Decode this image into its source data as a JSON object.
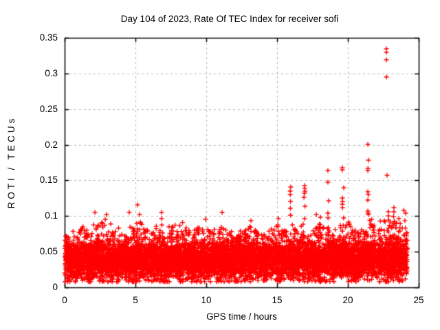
{
  "chart_data": {
    "type": "scatter",
    "title": "Day 104 of 2023, Rate Of TEC Index for receiver sofi",
    "xlabel": "GPS time / hours",
    "ylabel": "ROTI / TECUs",
    "xlim": [
      0,
      25
    ],
    "ylim": [
      0,
      0.35
    ],
    "xticks": {
      "values": [
        0,
        5,
        10,
        15,
        20,
        25
      ],
      "labels": [
        "0",
        "5",
        "10",
        "15",
        "20",
        "25"
      ]
    },
    "yticks": {
      "values": [
        0,
        0.05,
        0.1,
        0.15,
        0.2,
        0.25,
        0.3,
        0.35
      ],
      "labels": [
        "0",
        "0.05",
        "0.1",
        "0.15",
        "0.2",
        "0.25",
        "0.3",
        "0.35"
      ]
    },
    "grid": {
      "show": true,
      "color": "#b3b3b3",
      "dash": [
        3,
        4
      ]
    },
    "axes_color": "#000000",
    "background": "#ffffff",
    "legend": "none",
    "series": [
      {
        "name": "ROTI receiver sofi",
        "marker": "plus",
        "color": "#ff0000",
        "marker_size": 7,
        "outliers": [
          [
            22.72,
            0.3346
          ],
          [
            22.72,
            0.3298
          ],
          [
            22.72,
            0.3192
          ],
          [
            22.73,
            0.2951
          ],
          [
            21.41,
            0.2006
          ],
          [
            21.45,
            0.1784
          ],
          [
            21.42,
            0.1668
          ],
          [
            21.41,
            0.1639
          ],
          [
            19.61,
            0.1678
          ],
          [
            19.61,
            0.1649
          ],
          [
            19.71,
            0.1398
          ],
          [
            19.61,
            0.1254
          ],
          [
            19.63,
            0.1205
          ],
          [
            19.61,
            0.1167
          ],
          [
            19.62,
            0.1119
          ],
          [
            18.59,
            0.1639
          ],
          [
            18.59,
            0.1475
          ],
          [
            18.64,
            0.1215
          ],
          [
            18.59,
            0.1041
          ],
          [
            18.6,
            0.0974
          ],
          [
            22.77,
            0.1572
          ],
          [
            22.86,
            0.1061
          ],
          [
            22.86,
            0.1003
          ],
          [
            22.88,
            0.0945
          ],
          [
            21.41,
            0.134
          ],
          [
            21.44,
            0.1302
          ],
          [
            21.41,
            0.1225
          ],
          [
            21.41,
            0.107
          ],
          [
            21.43,
            0.1041
          ],
          [
            21.45,
            0.1022
          ],
          [
            16.94,
            0.1427
          ],
          [
            16.95,
            0.1389
          ],
          [
            16.97,
            0.135
          ],
          [
            16.94,
            0.1321
          ],
          [
            16.9,
            0.1263
          ],
          [
            16.97,
            0.1138
          ],
          [
            16.94,
            0.0964
          ],
          [
            15.97,
            0.1408
          ],
          [
            15.93,
            0.135
          ],
          [
            15.93,
            0.1302
          ],
          [
            15.95,
            0.1205
          ],
          [
            15.94,
            0.1109
          ],
          [
            15.95,
            0.1013
          ],
          [
            23.25,
            0.1119
          ],
          [
            23.25,
            0.1061
          ],
          [
            23.22,
            0.0993
          ],
          [
            23.28,
            0.0926
          ],
          [
            2.14,
            0.1051
          ],
          [
            2.96,
            0.1022
          ],
          [
            4.56,
            0.1051
          ],
          [
            5.15,
            0.1157
          ],
          [
            5.29,
            0.1022
          ],
          [
            6.84,
            0.1051
          ],
          [
            6.85,
            0.0964
          ],
          [
            9.95,
            0.0955
          ],
          [
            11.12,
            0.1051
          ],
          [
            13.16,
            0.0935
          ],
          [
            15.1,
            0.0964
          ],
          [
            17.77,
            0.1022
          ],
          [
            18.06,
            0.0984
          ],
          [
            19.7,
            0.0974
          ],
          [
            20.05,
            0.0916
          ],
          [
            23.95,
            0.108
          ],
          [
            24.08,
            0.1041
          ],
          [
            23.6,
            0.0964
          ]
        ],
        "band": {
          "x_min": 0.0,
          "x_max": 24.2,
          "y_floor": 0.008,
          "core_mean": 0.038,
          "core_sigma": 0.012,
          "solid_max": 0.056,
          "count": 7500,
          "seed": 20230104,
          "envelope": [
            [
              0,
              0.078
            ],
            [
              0.3,
              0.085
            ],
            [
              0.8,
              0.075
            ],
            [
              1.2,
              0.09
            ],
            [
              1.6,
              0.08
            ],
            [
              2.0,
              0.095
            ],
            [
              2.4,
              0.09
            ],
            [
              2.8,
              0.098
            ],
            [
              3.2,
              0.095
            ],
            [
              3.6,
              0.085
            ],
            [
              4.2,
              0.08
            ],
            [
              4.6,
              0.095
            ],
            [
              5.0,
              0.088
            ],
            [
              5.3,
              0.095
            ],
            [
              5.7,
              0.08
            ],
            [
              6.2,
              0.082
            ],
            [
              6.8,
              0.095
            ],
            [
              7.3,
              0.085
            ],
            [
              7.8,
              0.09
            ],
            [
              8.3,
              0.092
            ],
            [
              8.8,
              0.08
            ],
            [
              9.3,
              0.082
            ],
            [
              9.8,
              0.09
            ],
            [
              10.3,
              0.078
            ],
            [
              10.8,
              0.085
            ],
            [
              11.1,
              0.098
            ],
            [
              11.5,
              0.082
            ],
            [
              12.0,
              0.078
            ],
            [
              12.5,
              0.082
            ],
            [
              13.0,
              0.09
            ],
            [
              13.5,
              0.082
            ],
            [
              14.0,
              0.078
            ],
            [
              14.5,
              0.08
            ],
            [
              15.0,
              0.09
            ],
            [
              15.5,
              0.085
            ],
            [
              16.0,
              0.095
            ],
            [
              16.5,
              0.08
            ],
            [
              17.0,
              0.095
            ],
            [
              17.5,
              0.085
            ],
            [
              18.0,
              0.095
            ],
            [
              18.5,
              0.09
            ],
            [
              19.0,
              0.082
            ],
            [
              19.5,
              0.088
            ],
            [
              20.0,
              0.092
            ],
            [
              20.5,
              0.082
            ],
            [
              21.0,
              0.085
            ],
            [
              21.5,
              0.1
            ],
            [
              22.0,
              0.088
            ],
            [
              22.5,
              0.098
            ],
            [
              23.0,
              0.1
            ],
            [
              23.5,
              0.09
            ],
            [
              24.0,
              0.1
            ],
            [
              24.2,
              0.075
            ]
          ]
        }
      }
    ]
  }
}
